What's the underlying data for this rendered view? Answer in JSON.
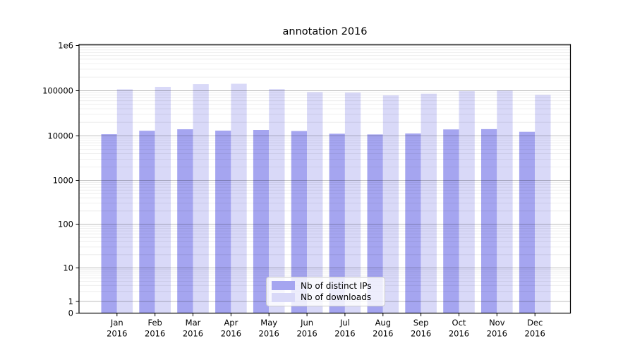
{
  "figure": {
    "title": "annotation 2016"
  },
  "legend": {
    "items": [
      {
        "label": "Nb of distinct IPs",
        "color": "#a5a5f0"
      },
      {
        "label": "Nb of downloads",
        "color": "#d9d9f8"
      }
    ]
  },
  "chart_data": {
    "type": "bar",
    "title": "annotation 2016",
    "categories": [
      "Jan",
      "Feb",
      "Mar",
      "Apr",
      "May",
      "Jun",
      "Jul",
      "Aug",
      "Sep",
      "Oct",
      "Nov",
      "Dec"
    ],
    "category_year": "2016",
    "series": [
      {
        "name": "Nb of distinct IPs",
        "color": "#a5a5f0",
        "values": [
          10900,
          13000,
          14000,
          13100,
          13600,
          12800,
          11200,
          10800,
          11300,
          13900,
          14100,
          12300
        ]
      },
      {
        "name": "Nb of downloads",
        "color": "#d9d9f8",
        "values": [
          108000,
          122000,
          140000,
          143000,
          109000,
          93000,
          91000,
          79000,
          86000,
          98000,
          101000,
          81000
        ]
      }
    ],
    "yscale": "symlog",
    "ylim": [
      0,
      1000000
    ],
    "y_ticks": [
      {
        "value": 0,
        "label": "0"
      },
      {
        "value": 1,
        "label": "1"
      },
      {
        "value": 10,
        "label": "10"
      },
      {
        "value": 100,
        "label": "100"
      },
      {
        "value": 1000,
        "label": "1000"
      },
      {
        "value": 10000,
        "label": "10000"
      },
      {
        "value": 100000,
        "label": "100000"
      },
      {
        "value": 1000000,
        "label": "1e6"
      }
    ],
    "grid": true,
    "legend_position": "lower center"
  }
}
